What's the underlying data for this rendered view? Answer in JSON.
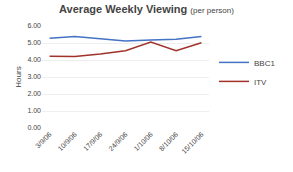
{
  "chart_data": {
    "type": "line",
    "title": "Average Weekly Viewing",
    "subtitle": "(per person)",
    "y_label": "Hours",
    "categories": [
      "3/9/06",
      "10/9/06",
      "17/9/06",
      "24/9/06",
      "1/10/06",
      "8/10/06",
      "15/10/06"
    ],
    "series": [
      {
        "name": "BBC1",
        "color": "#4472C4",
        "values": [
          5.28,
          5.38,
          5.25,
          5.12,
          5.18,
          5.22,
          5.38
        ]
      },
      {
        "name": "ITV",
        "color": "#A0322A",
        "values": [
          4.22,
          4.2,
          4.35,
          4.55,
          5.05,
          4.55,
          5.02
        ]
      }
    ],
    "ylim": [
      0.0,
      6.0
    ],
    "yticks": [
      {
        "value": 0,
        "label": "0.00"
      },
      {
        "value": 1,
        "label": "1.00"
      },
      {
        "value": 2,
        "label": "2.00"
      },
      {
        "value": 3,
        "label": "3.00"
      },
      {
        "value": 4,
        "label": "4.00"
      },
      {
        "value": 5,
        "label": "5.00"
      },
      {
        "value": 6,
        "label": "6.00"
      }
    ],
    "grid": true,
    "legend": "right"
  }
}
